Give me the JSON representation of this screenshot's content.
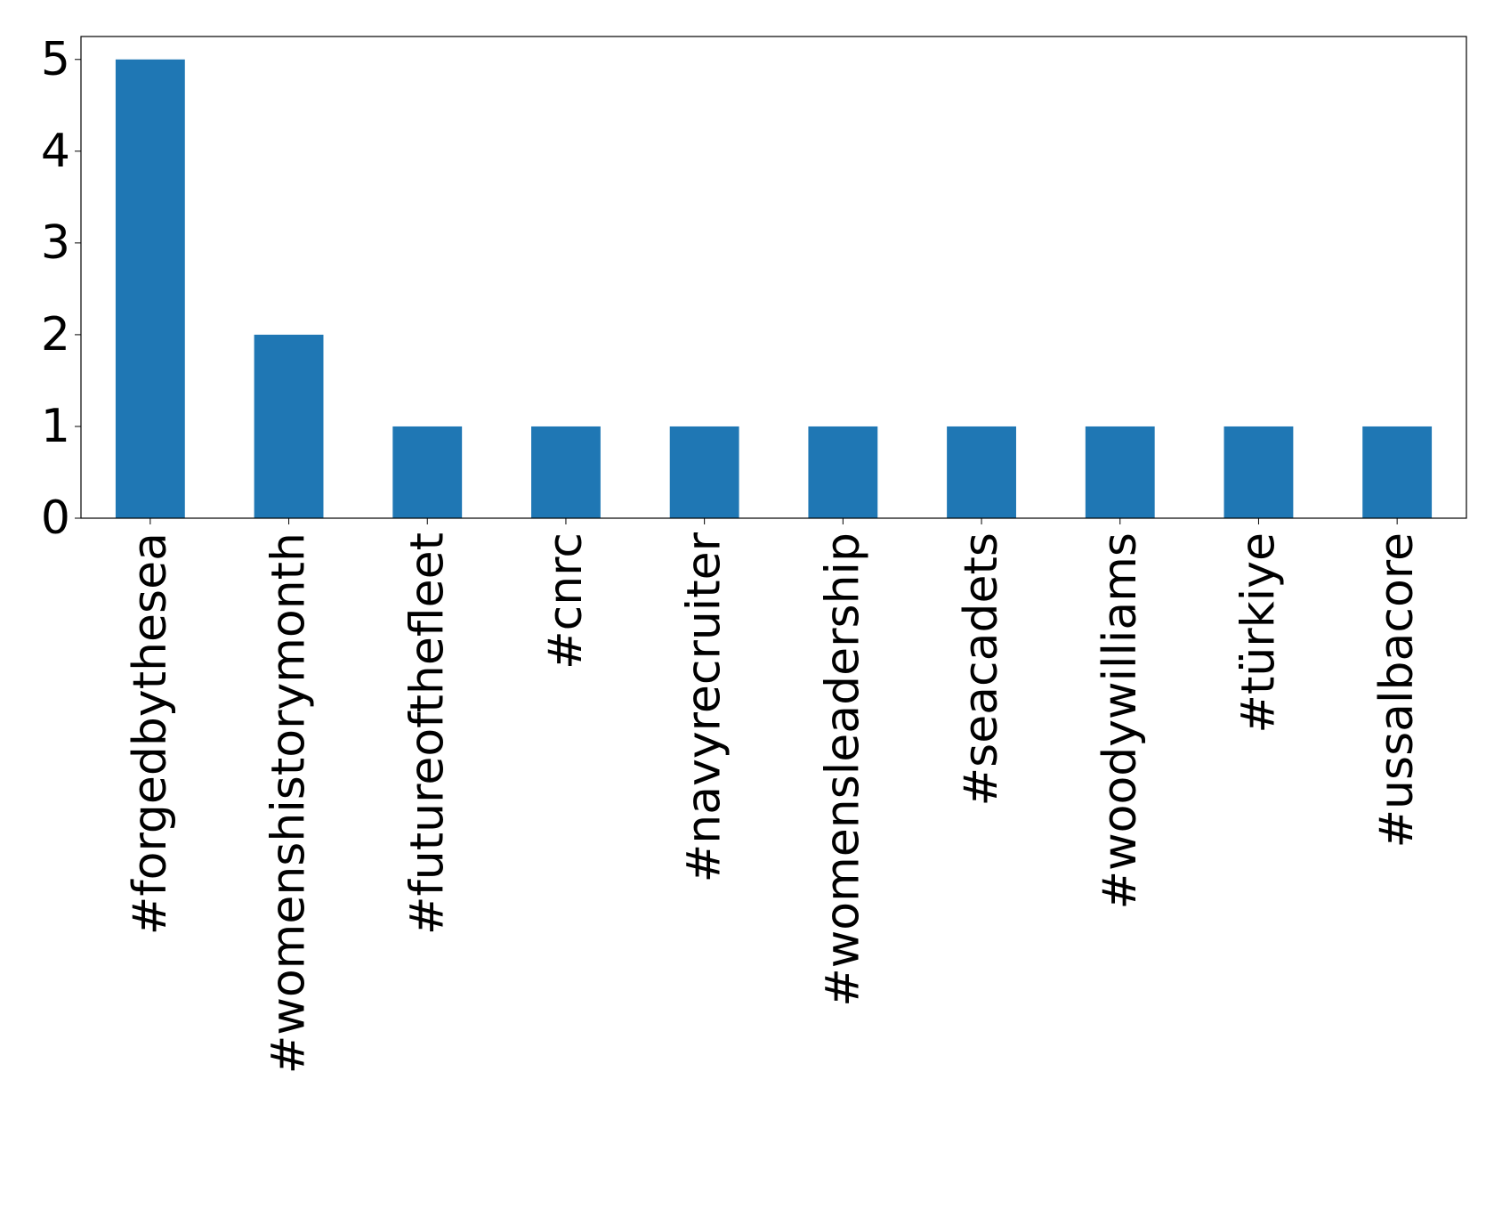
{
  "chart_data": {
    "type": "bar",
    "categories": [
      "#forgedbythesea",
      "#womenshistorymonth",
      "#futureofthefleet",
      "#cnrc",
      "#navyrecruiter",
      "#womensleadership",
      "#seacadets",
      "#woodywilliams",
      "#türkiye",
      "#ussalbacore"
    ],
    "values": [
      5,
      2,
      1,
      1,
      1,
      1,
      1,
      1,
      1,
      1
    ],
    "color": "#1f77b4",
    "ylim": [
      0,
      5.25
    ],
    "yticks": [
      0,
      1,
      2,
      3,
      4,
      5
    ],
    "grid": false
  }
}
